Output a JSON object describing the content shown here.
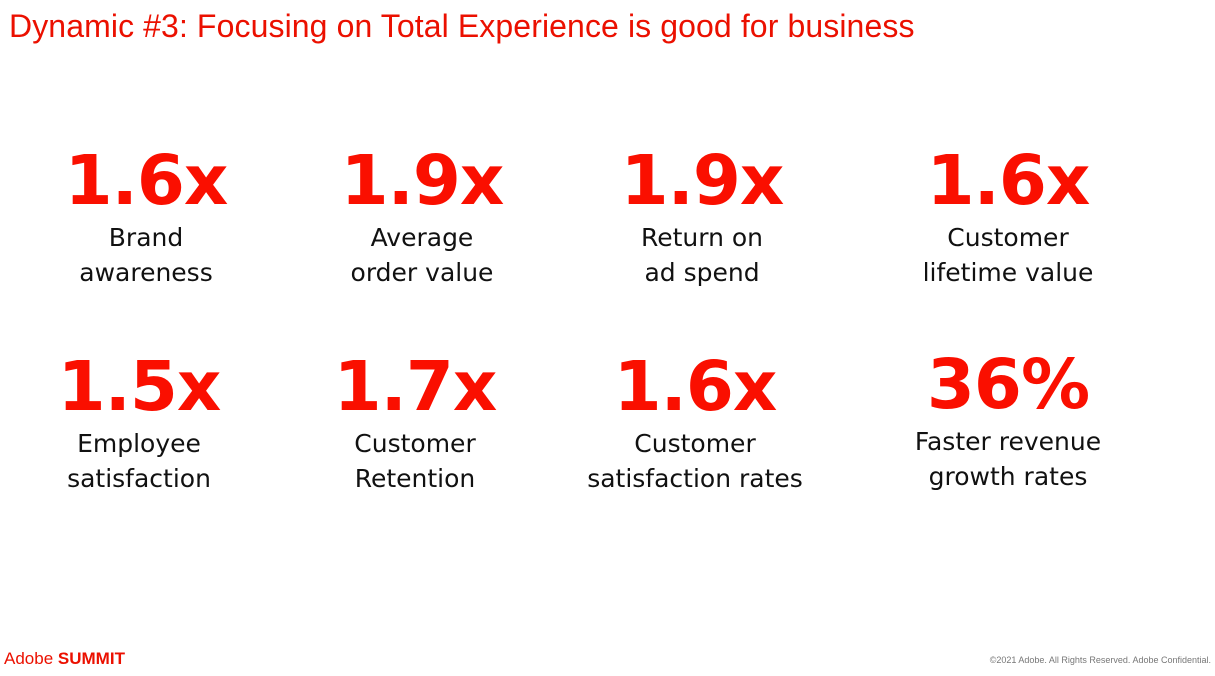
{
  "title": "Dynamic #3: Focusing on Total Experience is good for business",
  "stats": [
    {
      "value": "1.6x",
      "line1": "Brand",
      "line2": "awareness"
    },
    {
      "value": "1.9x",
      "line1": "Average",
      "line2": "order value"
    },
    {
      "value": "1.9x",
      "line1": "Return on",
      "line2": "ad spend"
    },
    {
      "value": "1.6x",
      "line1": "Customer",
      "line2": "lifetime value"
    },
    {
      "value": "1.5x",
      "line1": "Employee",
      "line2": "satisfaction"
    },
    {
      "value": "1.7x",
      "line1": "Customer",
      "line2": "Retention"
    },
    {
      "value": "1.6x",
      "line1": "Customer",
      "line2": "satisfaction rates"
    },
    {
      "value": "36%",
      "line1": "Faster revenue",
      "line2": "growth rates"
    }
  ],
  "footer": {
    "brand_part1": "Adobe",
    "brand_part2": "SUMMIT",
    "copyright": "©2021 Adobe. All Rights Reserved. Adobe Confidential."
  },
  "colors": {
    "accent": "#fa0f00",
    "title": "#eb1000",
    "text": "#111111"
  }
}
